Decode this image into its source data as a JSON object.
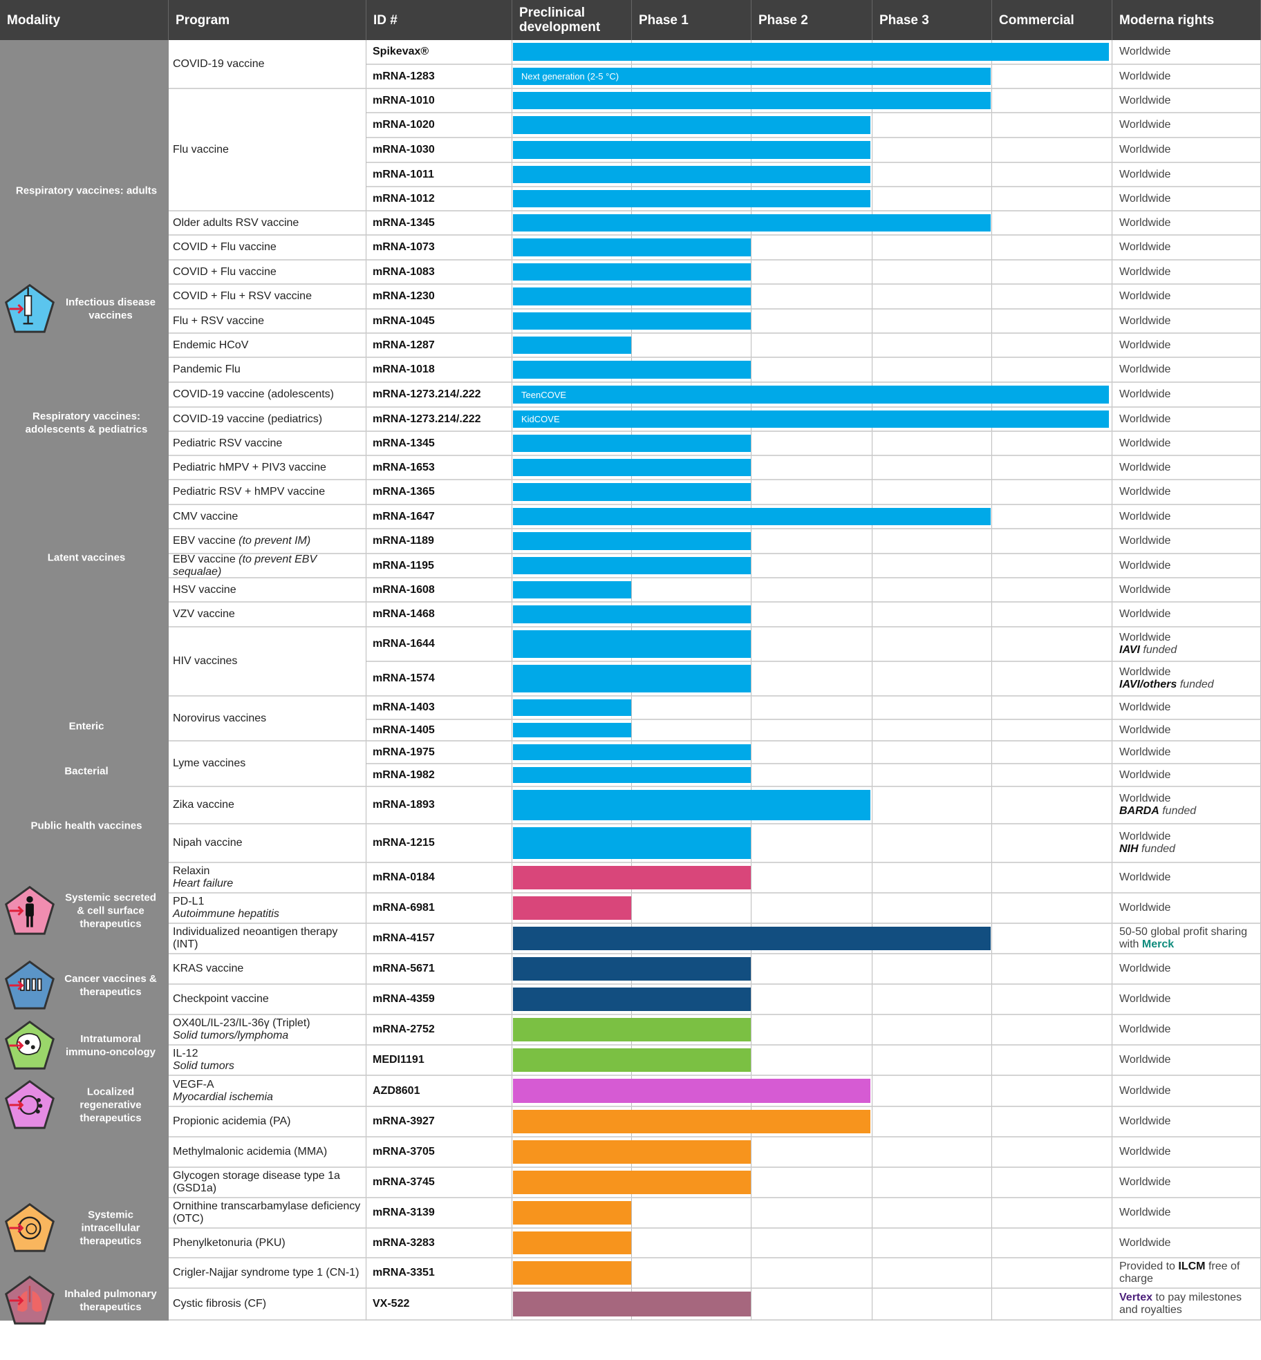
{
  "header": [
    "Modality",
    "Program",
    "ID #",
    "Preclinical development",
    "Phase 1",
    "Phase 2",
    "Phase 3",
    "Commercial",
    "Moderna rights"
  ],
  "stages": [
    "Preclinical",
    "Phase 1",
    "Phase 2",
    "Phase 3",
    "Commercial"
  ],
  "colors": {
    "infectious": "#00a9e8",
    "secreted": "#d9467a",
    "cancer": "#124e80",
    "intratumoral": "#7bc043",
    "regenerative": "#d65bd3",
    "intracellular": "#f7941d",
    "pulmonary": "#a6677e",
    "merck": "#0f8c7d",
    "vertex": "#4b1f7a"
  },
  "modalities": [
    {
      "label": "Respiratory vaccines: adults",
      "icon": null
    },
    {
      "label": "Infectious disease vaccines",
      "icon": "syringe-icon",
      "color": "#5bc5ee"
    },
    {
      "label": "Respiratory vaccines: adolescents & pediatrics",
      "icon": null
    },
    {
      "label": "Latent vaccines",
      "icon": null
    },
    {
      "label": "Enteric",
      "icon": null
    },
    {
      "label": "Bacterial",
      "icon": null
    },
    {
      "label": "Public health vaccines",
      "icon": null
    },
    {
      "label": "Systemic secreted & cell surface therapeutics",
      "icon": "person-icon",
      "color": "#f08db0"
    },
    {
      "label": "Cancer vaccines & therapeutics",
      "icon": "syringes-icon",
      "color": "#5b95c8"
    },
    {
      "label": "Intratumoral immuno-oncology",
      "icon": "tumor-cell-icon",
      "color": "#9ad66a"
    },
    {
      "label": "Localized regenerative therapeutics",
      "icon": "regenerative-cell-icon",
      "color": "#e58be3"
    },
    {
      "label": "Systemic intracellular therapeutics",
      "icon": "cell-icon",
      "color": "#f9b65e"
    },
    {
      "label": "Inhaled pulmonary therapeutics",
      "icon": "lungs-icon",
      "color": "#b86e86"
    }
  ],
  "programs": [
    {
      "name": "COVID-19 vaccine",
      "rows": [
        {
          "id": "Spikevax®",
          "stage": "Commercial",
          "color": "infectious",
          "rights": [
            {
              "t": "Worldwide"
            }
          ]
        },
        {
          "id": "mRNA-1283",
          "stage": "Phase 3",
          "color": "infectious",
          "label": "Next generation (2-5 °C)",
          "rights": [
            {
              "t": "Worldwide"
            }
          ]
        }
      ]
    },
    {
      "name": "Flu vaccine",
      "rows": [
        {
          "id": "mRNA-1010",
          "stage": "Phase 3",
          "color": "infectious",
          "rights": [
            {
              "t": "Worldwide"
            }
          ]
        },
        {
          "id": "mRNA-1020",
          "stage": "Phase 2",
          "color": "infectious",
          "rights": [
            {
              "t": "Worldwide"
            }
          ]
        },
        {
          "id": "mRNA-1030",
          "stage": "Phase 2",
          "color": "infectious",
          "rights": [
            {
              "t": "Worldwide"
            }
          ]
        },
        {
          "id": "mRNA-1011",
          "stage": "Phase 2",
          "color": "infectious",
          "rights": [
            {
              "t": "Worldwide"
            }
          ]
        },
        {
          "id": "mRNA-1012",
          "stage": "Phase 2",
          "color": "infectious",
          "rights": [
            {
              "t": "Worldwide"
            }
          ]
        }
      ]
    },
    {
      "name": "Older adults RSV vaccine",
      "rows": [
        {
          "id": "mRNA-1345",
          "stage": "Phase 3",
          "color": "infectious",
          "rights": [
            {
              "t": "Worldwide"
            }
          ]
        }
      ]
    },
    {
      "name": "COVID + Flu vaccine",
      "rows": [
        {
          "id": "mRNA-1073",
          "stage": "Phase 1",
          "color": "infectious",
          "rights": [
            {
              "t": "Worldwide"
            }
          ]
        }
      ]
    },
    {
      "name": "COVID + Flu vaccine",
      "rows": [
        {
          "id": "mRNA-1083",
          "stage": "Phase 1",
          "color": "infectious",
          "rights": [
            {
              "t": "Worldwide"
            }
          ]
        }
      ]
    },
    {
      "name": "COVID + Flu + RSV vaccine",
      "rows": [
        {
          "id": "mRNA-1230",
          "stage": "Phase 1",
          "color": "infectious",
          "rights": [
            {
              "t": "Worldwide"
            }
          ]
        }
      ]
    },
    {
      "name": "Flu + RSV vaccine",
      "rows": [
        {
          "id": "mRNA-1045",
          "stage": "Phase 1",
          "color": "infectious",
          "rights": [
            {
              "t": "Worldwide"
            }
          ]
        }
      ]
    },
    {
      "name": "Endemic HCoV",
      "rows": [
        {
          "id": "mRNA-1287",
          "stage": "Preclinical",
          "color": "infectious",
          "rights": [
            {
              "t": "Worldwide"
            }
          ]
        }
      ]
    },
    {
      "name": "Pandemic Flu",
      "rows": [
        {
          "id": "mRNA-1018",
          "stage": "Phase 1",
          "color": "infectious",
          "rights": [
            {
              "t": "Worldwide"
            }
          ]
        }
      ]
    },
    {
      "name": "COVID-19 vaccine (adolescents)",
      "rows": [
        {
          "id": "mRNA-1273.214/.222",
          "stage": "Commercial",
          "color": "infectious",
          "label": "TeenCOVE",
          "rights": [
            {
              "t": "Worldwide"
            }
          ]
        }
      ]
    },
    {
      "name": "COVID-19 vaccine (pediatrics)",
      "rows": [
        {
          "id": "mRNA-1273.214/.222",
          "stage": "Commercial",
          "color": "infectious",
          "label": "KidCOVE",
          "rights": [
            {
              "t": "Worldwide"
            }
          ]
        }
      ]
    },
    {
      "name": "Pediatric  RSV vaccine",
      "rows": [
        {
          "id": "mRNA-1345",
          "stage": "Phase 1",
          "color": "infectious",
          "rights": [
            {
              "t": "Worldwide"
            }
          ]
        }
      ]
    },
    {
      "name": "Pediatric hMPV + PIV3 vaccine",
      "rows": [
        {
          "id": "mRNA-1653",
          "stage": "Phase 1",
          "color": "infectious",
          "rights": [
            {
              "t": "Worldwide"
            }
          ]
        }
      ]
    },
    {
      "name": "Pediatric RSV + hMPV vaccine",
      "rows": [
        {
          "id": "mRNA-1365",
          "stage": "Phase 1",
          "color": "infectious",
          "rights": [
            {
              "t": "Worldwide"
            }
          ]
        }
      ]
    },
    {
      "name": "CMV vaccine",
      "rows": [
        {
          "id": "mRNA-1647",
          "stage": "Phase 3",
          "color": "infectious",
          "rights": [
            {
              "t": "Worldwide"
            }
          ]
        }
      ]
    },
    {
      "name": "EBV vaccine",
      "note": "(to prevent IM)",
      "rows": [
        {
          "id": "mRNA-1189",
          "stage": "Phase 1",
          "color": "infectious",
          "rights": [
            {
              "t": "Worldwide"
            }
          ]
        }
      ]
    },
    {
      "name": "EBV vaccine",
      "note": "(to prevent EBV sequalae)",
      "rows": [
        {
          "id": "mRNA-1195",
          "stage": "Phase 1",
          "color": "infectious",
          "rights": [
            {
              "t": "Worldwide"
            }
          ]
        }
      ]
    },
    {
      "name": "HSV vaccine",
      "rows": [
        {
          "id": "mRNA-1608",
          "stage": "Preclinical",
          "color": "infectious",
          "rights": [
            {
              "t": "Worldwide"
            }
          ]
        }
      ]
    },
    {
      "name": "VZV vaccine",
      "rows": [
        {
          "id": "mRNA-1468",
          "stage": "Phase 1",
          "color": "infectious",
          "rights": [
            {
              "t": "Worldwide"
            }
          ]
        }
      ]
    },
    {
      "name": "HIV vaccines",
      "rows": [
        {
          "id": "mRNA-1644",
          "stage": "Phase 1",
          "color": "infectious",
          "rights": [
            {
              "t": "Worldwide"
            },
            {
              "t": "IAVI",
              "s": "bi",
              "br": true
            },
            {
              "t": " funded",
              "s": "i"
            }
          ]
        },
        {
          "id": "mRNA-1574",
          "stage": "Phase 1",
          "color": "infectious",
          "rights": [
            {
              "t": "Worldwide"
            },
            {
              "t": "IAVI/others",
              "s": "bi",
              "br": true
            },
            {
              "t": " funded",
              "s": "i"
            }
          ]
        }
      ]
    },
    {
      "name": "Norovirus vaccines",
      "rows": [
        {
          "id": "mRNA-1403",
          "stage": "Preclinical",
          "color": "infectious",
          "rights": [
            {
              "t": "Worldwide"
            }
          ]
        },
        {
          "id": "mRNA-1405",
          "stage": "Preclinical",
          "color": "infectious",
          "rights": [
            {
              "t": "Worldwide"
            }
          ]
        }
      ]
    },
    {
      "name": "Lyme vaccines",
      "rows": [
        {
          "id": "mRNA-1975",
          "stage": "Phase 1",
          "color": "infectious",
          "rights": [
            {
              "t": "Worldwide"
            }
          ]
        },
        {
          "id": "mRNA-1982",
          "stage": "Phase 1",
          "color": "infectious",
          "rights": [
            {
              "t": "Worldwide"
            }
          ]
        }
      ]
    },
    {
      "name": "Zika vaccine",
      "rows": [
        {
          "id": "mRNA-1893",
          "stage": "Phase 2",
          "color": "infectious",
          "rights": [
            {
              "t": "Worldwide"
            },
            {
              "t": "BARDA",
              "s": "bi",
              "br": true
            },
            {
              "t": " funded",
              "s": "i"
            }
          ]
        }
      ]
    },
    {
      "name": "Nipah vaccine",
      "rows": [
        {
          "id": "mRNA-1215",
          "stage": "Phase 1",
          "color": "infectious",
          "rights": [
            {
              "t": "Worldwide"
            },
            {
              "t": "NIH",
              "s": "bi",
              "br": true
            },
            {
              "t": " funded",
              "s": "i"
            }
          ]
        }
      ]
    },
    {
      "name": "Relaxin",
      "sub": "Heart failure",
      "rows": [
        {
          "id": "mRNA-0184",
          "stage": "Phase 1",
          "color": "secreted",
          "rights": [
            {
              "t": "Worldwide"
            }
          ]
        }
      ]
    },
    {
      "name": "PD-L1",
      "sub": "Autoimmune hepatitis",
      "rows": [
        {
          "id": "mRNA-6981",
          "stage": "Preclinical",
          "color": "secreted",
          "rights": [
            {
              "t": "Worldwide"
            }
          ]
        }
      ]
    },
    {
      "name": "Individualized neoantigen therapy (INT)",
      "rows": [
        {
          "id": "mRNA-4157",
          "stage": "Phase 3",
          "color": "cancer",
          "rights": [
            {
              "t": "50-50 global profit sharing with "
            },
            {
              "t": "Merck",
              "s": "b",
              "c": "merck"
            }
          ]
        }
      ]
    },
    {
      "name": "KRAS vaccine",
      "rows": [
        {
          "id": "mRNA-5671",
          "stage": "Phase 1",
          "color": "cancer",
          "rights": [
            {
              "t": "Worldwide"
            }
          ]
        }
      ]
    },
    {
      "name": "Checkpoint vaccine",
      "rows": [
        {
          "id": "mRNA-4359",
          "stage": "Phase 1",
          "color": "cancer",
          "rights": [
            {
              "t": "Worldwide"
            }
          ]
        }
      ]
    },
    {
      "name": "OX40L/IL-23/IL-36γ  (Triplet)",
      "sub": "Solid tumors/lymphoma",
      "rows": [
        {
          "id": "mRNA-2752",
          "stage": "Phase 1",
          "color": "intratumoral",
          "rights": [
            {
              "t": "Worldwide"
            }
          ]
        }
      ]
    },
    {
      "name": "IL-12",
      "sub": "Solid tumors",
      "rows": [
        {
          "id": "MEDI1191",
          "stage": "Phase 1",
          "color": "intratumoral",
          "rights": [
            {
              "t": "Worldwide"
            }
          ]
        }
      ]
    },
    {
      "name": "VEGF-A",
      "sub": "Myocardial ischemia",
      "rows": [
        {
          "id": "AZD8601",
          "stage": "Phase 2",
          "color": "regenerative",
          "rights": [
            {
              "t": "Worldwide"
            }
          ]
        }
      ]
    },
    {
      "name": "Propionic  acidemia  (PA)",
      "rows": [
        {
          "id": "mRNA-3927",
          "stage": "Phase 2",
          "color": "intracellular",
          "rights": [
            {
              "t": "Worldwide"
            }
          ]
        }
      ]
    },
    {
      "name": "Methylmalonic  acidemia  (MMA)",
      "rows": [
        {
          "id": "mRNA-3705",
          "stage": "Phase 1",
          "color": "intracellular",
          "rights": [
            {
              "t": "Worldwide"
            }
          ]
        }
      ]
    },
    {
      "name": "Glycogen  storage disease type 1a (GSD1a)",
      "rows": [
        {
          "id": "mRNA-3745",
          "stage": "Phase 1",
          "color": "intracellular",
          "rights": [
            {
              "t": "Worldwide"
            }
          ]
        }
      ]
    },
    {
      "name": "Ornithine  transcarbamylase deficiency  (OTC)",
      "rows": [
        {
          "id": "mRNA-3139",
          "stage": "Preclinical",
          "color": "intracellular",
          "rights": [
            {
              "t": "Worldwide"
            }
          ]
        }
      ]
    },
    {
      "name": "Phenylketonuria  (PKU)",
      "rows": [
        {
          "id": "mRNA-3283",
          "stage": "Preclinical",
          "color": "intracellular",
          "rights": [
            {
              "t": "Worldwide"
            }
          ]
        }
      ]
    },
    {
      "name": "Crigler-Najjar  syndrome  type 1 (CN-1)",
      "rows": [
        {
          "id": "mRNA-3351",
          "stage": "Preclinical",
          "color": "intracellular",
          "rights": [
            {
              "t": "Provided to "
            },
            {
              "t": "ILCM",
              "s": "b"
            },
            {
              "t": " free of charge"
            }
          ]
        }
      ]
    },
    {
      "name": "Cystic fibrosis  (CF)",
      "rows": [
        {
          "id": "VX-522",
          "stage": "Phase 1",
          "color": "pulmonary",
          "rights": [
            {
              "t": "Vertex",
              "s": "b",
              "c": "vertex"
            },
            {
              "t": "  to pay milestones  and royalties"
            }
          ]
        }
      ]
    }
  ]
}
